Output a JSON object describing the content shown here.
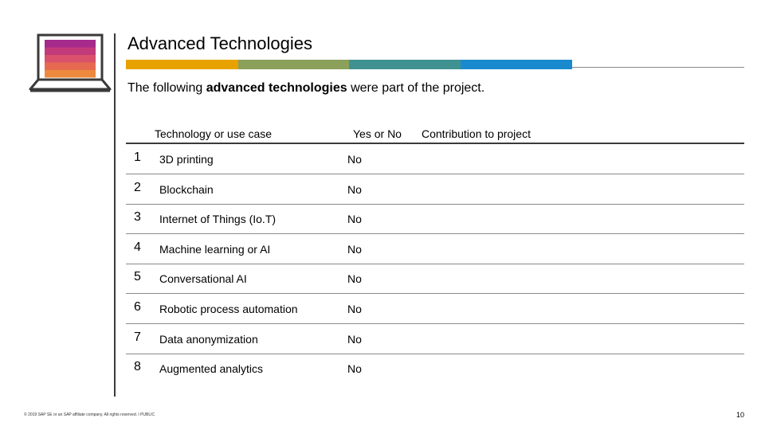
{
  "header": {
    "title": "Advanced Technologies",
    "subtitle_pre": "The following ",
    "subtitle_bold": "advanced technologies",
    "subtitle_post": " were part of the project."
  },
  "colorbar": [
    "#E8A200",
    "#8BA05A",
    "#3F9291",
    "#1A8ACF"
  ],
  "laptop_icon_stripes": [
    "#A52A8B",
    "#C33A7A",
    "#D9516A",
    "#E66A50",
    "#EE8A3E"
  ],
  "table": {
    "headers": {
      "technology": "Technology or use case",
      "yesno": "Yes or No",
      "contribution": "Contribution to project"
    },
    "rows": [
      {
        "num": "1",
        "tech": "3D printing",
        "yn": "No"
      },
      {
        "num": "2",
        "tech": "Blockchain",
        "yn": "No"
      },
      {
        "num": "3",
        "tech": "Internet of Things (Io.T)",
        "yn": "No"
      },
      {
        "num": "4",
        "tech": "Machine learning or AI",
        "yn": "No"
      },
      {
        "num": "5",
        "tech": "Conversational AI",
        "yn": "No"
      },
      {
        "num": "6",
        "tech": "Robotic process automation",
        "yn": "No"
      },
      {
        "num": "7",
        "tech": "Data anonymization",
        "yn": "No"
      },
      {
        "num": "8",
        "tech": "Augmented analytics",
        "yn": "No"
      }
    ]
  },
  "footer": {
    "copyright": "© 2019 SAP SE or an SAP affiliate company. All rights reserved. ǀ PUBLIC",
    "page_number": "10"
  }
}
